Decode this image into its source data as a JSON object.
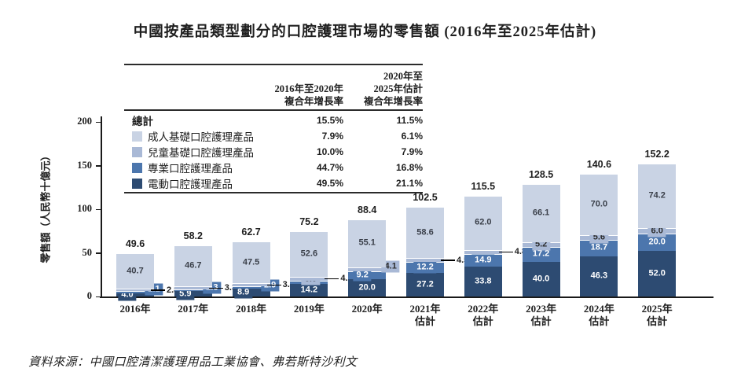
{
  "title": "中國按產品類型劃分的口腔護理市場的零售額 (2016年至2025年估計)",
  "source_note": "資料來源：中國口腔清潔護理用品工業協會、弗若斯特沙利文",
  "colors": {
    "adult": "#c9d3e4",
    "kids": "#a9b9d6",
    "professional": "#4c76ad",
    "electric": "#2d4b72",
    "axis": "#1a1a1a",
    "table_border": "#2b2b2b"
  },
  "legend_table": {
    "header": {
      "col1": "2016年至2020年\n複合年增長率",
      "col2": "2020年至\n2025年估計\n複合年增長率"
    },
    "rows": [
      {
        "label": "總計",
        "swatch": "",
        "cagr_2016_2020": "15.5%",
        "cagr_2020_2025": "11.5%"
      },
      {
        "label": "成人基礎口腔護理產品",
        "swatch": "adult",
        "cagr_2016_2020": "7.9%",
        "cagr_2020_2025": "6.1%"
      },
      {
        "label": "兒童基礎口腔護理產品",
        "swatch": "kids",
        "cagr_2016_2020": "10.0%",
        "cagr_2020_2025": "7.9%"
      },
      {
        "label": "專業口腔護理產品",
        "swatch": "professional",
        "cagr_2016_2020": "44.7%",
        "cagr_2020_2025": "16.8%"
      },
      {
        "label": "電動口腔護理產品",
        "swatch": "electric",
        "cagr_2016_2020": "49.5%",
        "cagr_2020_2025": "21.1%"
      }
    ]
  },
  "chart_data": {
    "type": "bar",
    "stacked": true,
    "title": "中國按產品類型劃分的口腔護理市場的零售額 (2016年至2025年估計)",
    "ylabel": "零售額（人民幣十億元）",
    "ylim": [
      0,
      200
    ],
    "yticks": [
      0,
      50,
      100,
      150,
      200
    ],
    "grid": false,
    "legend_position": "top-left-table",
    "categories": [
      "2016年",
      "2017年",
      "2018年",
      "2019年",
      "2020年",
      "2021年\n估計",
      "2022年\n估計",
      "2023年\n估計",
      "2024年\n估計",
      "2025年\n估計"
    ],
    "series": [
      {
        "name": "電動口腔護理產品",
        "key": "electric",
        "values": [
          4.0,
          5.9,
          8.9,
          14.2,
          20.0,
          27.2,
          33.8,
          40.0,
          46.3,
          52.0
        ]
      },
      {
        "name": "專業口腔護理產品",
        "key": "professional",
        "values": [
          2.1,
          2.3,
          2.9,
          3.8,
          9.2,
          12.2,
          14.9,
          17.2,
          18.7,
          20.0
        ]
      },
      {
        "name": "兒童基礎口腔護理產品",
        "key": "kids",
        "values": [
          2.8,
          3.3,
          3.4,
          4.6,
          4.1,
          4.5,
          4.8,
          5.2,
          5.6,
          6.0
        ]
      },
      {
        "name": "成人基礎口腔護理產品",
        "key": "adult",
        "values": [
          40.7,
          46.7,
          47.5,
          52.6,
          55.1,
          58.6,
          62.0,
          66.1,
          70.0,
          74.2
        ]
      }
    ],
    "totals": [
      49.6,
      58.2,
      62.7,
      75.2,
      88.4,
      102.5,
      115.5,
      128.5,
      140.6,
      152.2
    ],
    "label_styles": {
      "electric": [
        "chip",
        "chip",
        "chip",
        "in",
        "in",
        "in",
        "in",
        "in",
        "in",
        "in"
      ],
      "professional": [
        "chipR",
        "chipR",
        "chipR",
        "lightChip",
        "chipL",
        "chip",
        "chip",
        "in",
        "in",
        "in"
      ],
      "kids": [
        "callout",
        "callout",
        "callout",
        "callout",
        "chipR",
        "callout",
        "callout",
        "chip",
        "chip",
        "chip"
      ],
      "adult": [
        "in",
        "in",
        "in",
        "in",
        "in",
        "in",
        "in",
        "in",
        "in",
        "in"
      ]
    }
  }
}
